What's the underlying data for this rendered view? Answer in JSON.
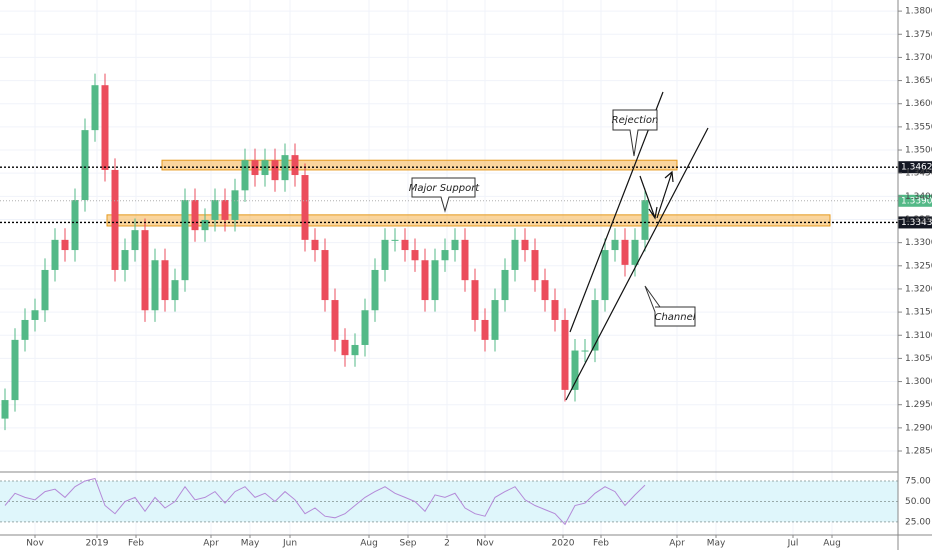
{
  "chart_data": {
    "type": "candlestick",
    "up_color": "#53b987",
    "down_color": "#eb4d5c",
    "xlim": [
      0,
      449
    ],
    "xticks": [
      {
        "value": 17.5,
        "label": "Nov"
      },
      {
        "value": 48.5,
        "label": "2019"
      },
      {
        "value": 68,
        "label": "Feb"
      },
      {
        "value": 105.5,
        "label": "Apr"
      },
      {
        "value": 125,
        "label": "May"
      },
      {
        "value": 145,
        "label": "Jun"
      },
      {
        "value": 184.5,
        "label": "Aug"
      },
      {
        "value": 204,
        "label": "Sep"
      },
      {
        "value": 223.5,
        "label": "2"
      },
      {
        "value": 242.5,
        "label": "Nov"
      },
      {
        "value": 281.5,
        "label": "2020"
      },
      {
        "value": 300.5,
        "label": "Feb"
      },
      {
        "value": 338.5,
        "label": "Apr"
      },
      {
        "value": 358,
        "label": "May"
      },
      {
        "value": 396.5,
        "label": "Jul"
      },
      {
        "value": 416,
        "label": "Aug"
      }
    ],
    "ylim": [
      1.2809,
      1.3824
    ],
    "yticks": [
      {
        "value": 1.285,
        "label": "1.28500"
      },
      {
        "value": 1.29,
        "label": "1.29000"
      },
      {
        "value": 1.295,
        "label": "1.29500"
      },
      {
        "value": 1.3,
        "label": "1.30000"
      },
      {
        "value": 1.305,
        "label": "1.30500"
      },
      {
        "value": 1.31,
        "label": "1.31000"
      },
      {
        "value": 1.315,
        "label": "1.31500"
      },
      {
        "value": 1.32,
        "label": "1.32000"
      },
      {
        "value": 1.325,
        "label": "1.32500"
      },
      {
        "value": 1.33,
        "label": "1.33000"
      },
      {
        "value": 1.335,
        "label": "1.33500"
      },
      {
        "value": 1.34,
        "label": "1.34000"
      },
      {
        "value": 1.345,
        "label": "1.34500"
      },
      {
        "value": 1.35,
        "label": "1.35000"
      },
      {
        "value": 1.355,
        "label": "1.35500"
      },
      {
        "value": 1.36,
        "label": "1.36000"
      },
      {
        "value": 1.365,
        "label": "1.36500"
      },
      {
        "value": 1.37,
        "label": "1.37000"
      },
      {
        "value": 1.375,
        "label": "1.37500"
      },
      {
        "value": 1.38,
        "label": "1.38000"
      }
    ],
    "grid": true,
    "x": [
      2.5,
      7.5,
      12.5,
      17.5,
      22.5,
      27.5,
      32.5,
      37.5,
      42.5,
      47.5,
      52.5,
      57.5,
      62.5,
      67.5,
      72.5,
      77.5,
      82.5,
      87.5,
      92.5,
      97.5,
      102.5,
      107.5,
      112.5,
      117.5,
      122.5,
      127.5,
      132.5,
      137.5,
      142.5,
      147.5,
      152.5,
      157.5,
      162.5,
      167.5,
      172.5,
      177.5,
      182.5,
      187.5,
      192.5,
      197.5,
      202.5,
      207.5,
      212.5,
      217.5,
      222.5,
      227.5,
      232.5,
      237.5,
      242.5,
      247.5,
      252.5,
      257.5,
      262.5,
      267.5,
      272.5,
      277.5,
      282.5,
      287.5,
      292.5,
      297.5,
      302.5,
      307.5,
      312.5,
      317.5,
      322.5
    ],
    "open": [
      1.292,
      1.296,
      1.309,
      1.3133,
      1.3154,
      1.3241,
      1.3306,
      1.3284,
      1.3392,
      1.3543,
      1.364,
      1.3457,
      1.3241,
      1.3284,
      1.3327,
      1.3154,
      1.3262,
      1.3176,
      1.3219,
      1.3392,
      1.3327,
      1.3349,
      1.3392,
      1.3349,
      1.3413,
      1.3478,
      1.3446,
      1.3478,
      1.3435,
      1.3489,
      1.3446,
      1.3306,
      1.3284,
      1.3176,
      1.309,
      1.3057,
      1.3079,
      1.3154,
      1.3241,
      1.3306,
      1.3306,
      1.3284,
      1.3262,
      1.3176,
      1.3262,
      1.3284,
      1.3306,
      1.3219,
      1.3133,
      1.309,
      1.3176,
      1.3241,
      1.3306,
      1.3284,
      1.3219,
      1.3176,
      1.3133,
      1.2982,
      1.3067,
      1.3067,
      1.3176,
      1.3284,
      1.3306,
      1.3252,
      1.3306
    ],
    "high": [
      1.2985,
      1.3115,
      1.3158,
      1.3179,
      1.3266,
      1.3331,
      1.3331,
      1.3417,
      1.3568,
      1.3665,
      1.3665,
      1.3482,
      1.3309,
      1.3352,
      1.3352,
      1.3287,
      1.3287,
      1.3244,
      1.3417,
      1.3417,
      1.3374,
      1.3417,
      1.3417,
      1.3438,
      1.3503,
      1.3503,
      1.3503,
      1.3503,
      1.3514,
      1.3514,
      1.3471,
      1.3331,
      1.3309,
      1.3201,
      1.3115,
      1.3104,
      1.3179,
      1.3266,
      1.3331,
      1.3331,
      1.3331,
      1.3309,
      1.3287,
      1.3287,
      1.3309,
      1.3331,
      1.3331,
      1.3244,
      1.3158,
      1.3201,
      1.3266,
      1.3331,
      1.3331,
      1.3309,
      1.3244,
      1.3201,
      1.3158,
      1.3092,
      1.3092,
      1.3201,
      1.3309,
      1.3331,
      1.3331,
      1.3331,
      1.3417
    ],
    "low": [
      1.2895,
      1.2935,
      1.3065,
      1.3108,
      1.3129,
      1.3216,
      1.3259,
      1.3259,
      1.3367,
      1.3518,
      1.3432,
      1.3216,
      1.3216,
      1.3259,
      1.3129,
      1.3129,
      1.3151,
      1.3151,
      1.3194,
      1.3302,
      1.3302,
      1.3324,
      1.3324,
      1.3324,
      1.3388,
      1.3421,
      1.3421,
      1.341,
      1.341,
      1.3421,
      1.3281,
      1.3259,
      1.3151,
      1.3065,
      1.3032,
      1.3032,
      1.3054,
      1.3129,
      1.3216,
      1.3281,
      1.3259,
      1.3237,
      1.3151,
      1.3151,
      1.3237,
      1.3259,
      1.3194,
      1.3108,
      1.3065,
      1.3065,
      1.3151,
      1.3216,
      1.3259,
      1.3194,
      1.3151,
      1.3108,
      1.2957,
      1.2957,
      1.3042,
      1.3042,
      1.3151,
      1.3259,
      1.3227,
      1.3227,
      1.3281
    ],
    "close": [
      1.296,
      1.309,
      1.3133,
      1.3154,
      1.3241,
      1.3306,
      1.3284,
      1.3392,
      1.3543,
      1.364,
      1.3457,
      1.3241,
      1.3284,
      1.3327,
      1.3154,
      1.3262,
      1.3176,
      1.3219,
      1.3392,
      1.3327,
      1.3349,
      1.3392,
      1.3349,
      1.3413,
      1.3478,
      1.3446,
      1.3478,
      1.3435,
      1.3489,
      1.3446,
      1.3306,
      1.3284,
      1.3176,
      1.309,
      1.3057,
      1.3079,
      1.3154,
      1.3241,
      1.3306,
      1.3306,
      1.3284,
      1.3262,
      1.3176,
      1.3262,
      1.3284,
      1.3306,
      1.3219,
      1.3133,
      1.309,
      1.3176,
      1.3241,
      1.3306,
      1.3284,
      1.3219,
      1.3176,
      1.3133,
      1.2982,
      1.3067,
      1.3067,
      1.3176,
      1.3284,
      1.3306,
      1.3252,
      1.3306,
      1.3392
    ],
    "levels": [
      {
        "value": 1.34629,
        "label": "1.34629"
      },
      {
        "value": 1.33436,
        "label": "1.33436"
      }
    ],
    "last_price": {
      "value": 1.33904,
      "label": "1.33904"
    },
    "zones": [
      {
        "from": 1.3457,
        "to": 1.3478,
        "start": 81,
        "end": 338.5
      },
      {
        "from": 1.3336,
        "to": 1.336,
        "start": 53.5,
        "end": 415
      }
    ],
    "annotations": [
      "Rejection",
      "Major Support",
      "Channel"
    ],
    "rsi": {
      "color": "#b48ad8",
      "ylim": [
        9,
        86
      ],
      "yticks": [
        {
          "value": 25,
          "label": "25.00"
        },
        {
          "value": 50,
          "label": "50.00"
        },
        {
          "value": 75,
          "label": "75.00"
        }
      ],
      "values": [
        45,
        60,
        55,
        52,
        62,
        65,
        55,
        68,
        75,
        78,
        45,
        35,
        50,
        55,
        38,
        55,
        42,
        50,
        68,
        52,
        55,
        62,
        48,
        62,
        68,
        55,
        60,
        50,
        62,
        52,
        35,
        42,
        32,
        30,
        35,
        45,
        55,
        62,
        68,
        60,
        55,
        50,
        38,
        58,
        55,
        60,
        42,
        35,
        32,
        55,
        62,
        68,
        52,
        45,
        40,
        35,
        22,
        45,
        48,
        60,
        68,
        62,
        45,
        58,
        70
      ]
    }
  }
}
